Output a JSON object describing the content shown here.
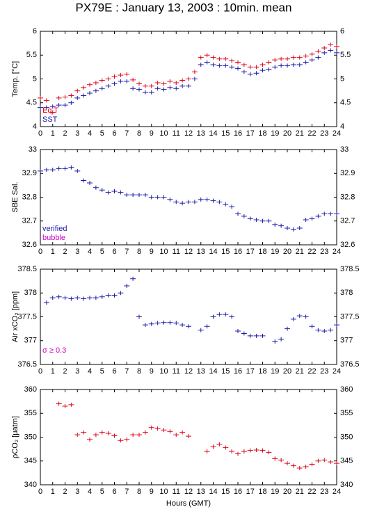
{
  "title": "PX79E : January 13, 2003 : 10min. mean",
  "chart_data": [
    {
      "type": "scatter",
      "ylabel": "Temp. [°C]",
      "x": [
        0,
        0.5,
        1,
        1.5,
        2,
        2.5,
        3,
        3.5,
        4,
        4.5,
        5,
        5.5,
        6,
        6.5,
        7,
        7.5,
        8,
        8.5,
        9,
        9.5,
        10,
        10.5,
        11,
        11.5,
        12,
        12.5,
        13,
        13.5,
        14,
        14.5,
        15,
        15.5,
        16,
        16.5,
        17,
        17.5,
        18,
        18.5,
        19,
        19.5,
        20,
        20.5,
        21,
        21.5,
        22,
        22.5,
        23,
        23.5,
        24
      ],
      "series": [
        {
          "name": "Eq T",
          "color": "#e0001a",
          "values": [
            4.6,
            4.55,
            4.3,
            4.6,
            4.62,
            4.65,
            4.75,
            4.82,
            4.88,
            4.92,
            4.97,
            5.0,
            5.05,
            5.08,
            5.1,
            4.98,
            4.9,
            4.85,
            4.85,
            4.92,
            4.9,
            4.95,
            4.92,
            4.97,
            5.0,
            5.15,
            5.45,
            5.5,
            5.45,
            5.42,
            5.42,
            5.38,
            5.35,
            5.3,
            5.25,
            5.25,
            5.3,
            5.35,
            5.4,
            5.42,
            5.42,
            5.45,
            5.45,
            5.48,
            5.52,
            5.58,
            5.65,
            5.72,
            5.68
          ]
        },
        {
          "name": "SST",
          "color": "#1a1aa8",
          "values": [
            4.4,
            4.4,
            4.42,
            4.45,
            4.45,
            4.5,
            4.6,
            4.65,
            4.7,
            4.75,
            4.8,
            4.85,
            4.9,
            4.95,
            4.95,
            4.8,
            4.78,
            4.72,
            4.72,
            4.8,
            4.78,
            4.82,
            4.8,
            4.85,
            4.85,
            5.0,
            5.3,
            5.35,
            5.3,
            5.28,
            5.28,
            5.25,
            5.22,
            5.15,
            5.1,
            5.12,
            5.18,
            5.2,
            5.25,
            5.28,
            5.28,
            5.3,
            5.3,
            5.35,
            5.4,
            5.45,
            5.55,
            5.6,
            5.55
          ]
        }
      ],
      "xlim": [
        0,
        24
      ],
      "xticks": [
        0,
        1,
        2,
        3,
        4,
        5,
        6,
        7,
        8,
        9,
        10,
        11,
        12,
        13,
        14,
        15,
        16,
        17,
        18,
        19,
        20,
        21,
        22,
        23,
        24
      ],
      "ylim": [
        4,
        6
      ],
      "yticks": [
        4,
        4.5,
        5,
        5.5,
        6
      ]
    },
    {
      "type": "scatter",
      "ylabel": "SBE Sal.",
      "x": [
        0,
        0.5,
        1,
        1.5,
        2,
        2.5,
        3,
        3.5,
        4,
        4.5,
        5,
        5.5,
        6,
        6.5,
        7,
        7.5,
        8,
        8.5,
        9,
        9.5,
        10,
        10.5,
        11,
        11.5,
        12,
        12.5,
        13,
        13.5,
        14,
        14.5,
        15,
        15.5,
        16,
        16.5,
        17,
        17.5,
        18,
        18.5,
        19,
        19.5,
        20,
        20.5,
        21,
        21.5,
        22,
        22.5,
        23,
        23.5,
        24
      ],
      "series": [
        {
          "name": "verified",
          "color": "#1a1aa8",
          "values": [
            32.91,
            32.915,
            32.915,
            32.92,
            32.92,
            32.925,
            32.91,
            32.87,
            32.86,
            32.84,
            32.83,
            32.82,
            32.825,
            32.82,
            32.81,
            32.81,
            32.81,
            32.81,
            32.8,
            32.8,
            32.8,
            32.79,
            32.78,
            32.775,
            32.78,
            32.78,
            32.79,
            32.79,
            32.785,
            32.78,
            32.77,
            32.76,
            32.73,
            32.72,
            32.71,
            32.705,
            32.7,
            32.7,
            32.685,
            32.68,
            32.67,
            32.665,
            32.67,
            32.705,
            32.71,
            32.72,
            32.73,
            32.73,
            32.73
          ]
        },
        {
          "name": "bubble",
          "color": "#cc00cc",
          "values": [
            null,
            null,
            null,
            null,
            null,
            null,
            null,
            null,
            null,
            null,
            null,
            null,
            null,
            null,
            null,
            null,
            null,
            null,
            null,
            null,
            null,
            null,
            null,
            null,
            null,
            null,
            null,
            null,
            null,
            null,
            null,
            null,
            null,
            null,
            null,
            null,
            null,
            null,
            null,
            null,
            null,
            null,
            null,
            null,
            null,
            null,
            null,
            null,
            null
          ]
        }
      ],
      "xlim": [
        0,
        24
      ],
      "xticks": [
        0,
        1,
        2,
        3,
        4,
        5,
        6,
        7,
        8,
        9,
        10,
        11,
        12,
        13,
        14,
        15,
        16,
        17,
        18,
        19,
        20,
        21,
        22,
        23,
        24
      ],
      "ylim": [
        32.6,
        33
      ],
      "yticks": [
        32.6,
        32.7,
        32.8,
        32.9,
        33
      ]
    },
    {
      "type": "scatter",
      "ylabel": "Air xCO₂ [ppm]",
      "annotation": "σ ≥ 0.3",
      "annotation_color": "#cc00cc",
      "x": [
        0,
        0.5,
        1,
        1.5,
        2,
        2.5,
        3,
        3.5,
        4,
        4.5,
        5,
        5.5,
        6,
        6.5,
        7,
        7.5,
        8,
        8.5,
        9,
        9.5,
        10,
        10.5,
        11,
        11.5,
        12,
        12.5,
        13,
        13.5,
        14,
        14.5,
        15,
        15.5,
        16,
        16.5,
        17,
        17.5,
        18,
        18.5,
        19,
        19.5,
        20,
        20.5,
        21,
        21.5,
        22,
        22.5,
        23,
        23.5,
        24
      ],
      "series": [
        {
          "name": "Air xCO₂",
          "color": "#1a1aa8",
          "values": [
            null,
            377.8,
            377.9,
            377.92,
            377.9,
            377.88,
            377.9,
            377.88,
            377.9,
            377.9,
            377.92,
            377.95,
            377.95,
            378.0,
            378.15,
            378.3,
            377.5,
            377.33,
            377.35,
            377.37,
            377.38,
            377.38,
            377.37,
            377.33,
            377.3,
            null,
            377.22,
            377.3,
            377.5,
            377.55,
            377.55,
            377.5,
            377.2,
            377.15,
            377.1,
            377.1,
            377.1,
            null,
            376.98,
            377.03,
            377.25,
            377.45,
            377.52,
            377.5,
            377.3,
            377.22,
            377.2,
            377.22,
            377.33
          ]
        }
      ],
      "xlim": [
        0,
        24
      ],
      "xticks": [
        0,
        1,
        2,
        3,
        4,
        5,
        6,
        7,
        8,
        9,
        10,
        11,
        12,
        13,
        14,
        15,
        16,
        17,
        18,
        19,
        20,
        21,
        22,
        23,
        24
      ],
      "ylim": [
        376.5,
        378.5
      ],
      "yticks": [
        376.5,
        377,
        377.5,
        378,
        378.5
      ]
    },
    {
      "type": "scatter",
      "ylabel": "ρCO₂ [μatm]",
      "xlabel": "Hours (GMT)",
      "x": [
        0,
        0.5,
        1,
        1.5,
        2,
        2.5,
        3,
        3.5,
        4,
        4.5,
        5,
        5.5,
        6,
        6.5,
        7,
        7.5,
        8,
        8.5,
        9,
        9.5,
        10,
        10.5,
        11,
        11.5,
        12,
        12.5,
        13,
        13.5,
        14,
        14.5,
        15,
        15.5,
        16,
        16.5,
        17,
        17.5,
        18,
        18.5,
        19,
        19.5,
        20,
        20.5,
        21,
        21.5,
        22,
        22.5,
        23,
        23.5,
        24
      ],
      "series": [
        {
          "name": "ρCO₂",
          "color": "#e0001a",
          "values": [
            null,
            null,
            null,
            357,
            356.5,
            356.8,
            350.5,
            351,
            349.5,
            350.5,
            351,
            350.8,
            350.3,
            349.3,
            349.5,
            350.5,
            350.5,
            351,
            352,
            351.8,
            351.5,
            351.2,
            350.5,
            351,
            350.2,
            null,
            null,
            347,
            348,
            348.5,
            347.8,
            347,
            346.5,
            347,
            347.2,
            347.3,
            347.2,
            346.8,
            345.5,
            345.2,
            344.5,
            344,
            343.5,
            343.8,
            344.3,
            345,
            345.2,
            344.8,
            344.5
          ]
        }
      ],
      "xlim": [
        0,
        24
      ],
      "xticks": [
        0,
        1,
        2,
        3,
        4,
        5,
        6,
        7,
        8,
        9,
        10,
        11,
        12,
        13,
        14,
        15,
        16,
        17,
        18,
        19,
        20,
        21,
        22,
        23,
        24
      ],
      "ylim": [
        340,
        360
      ],
      "yticks": [
        340,
        345,
        350,
        355,
        360
      ]
    }
  ]
}
